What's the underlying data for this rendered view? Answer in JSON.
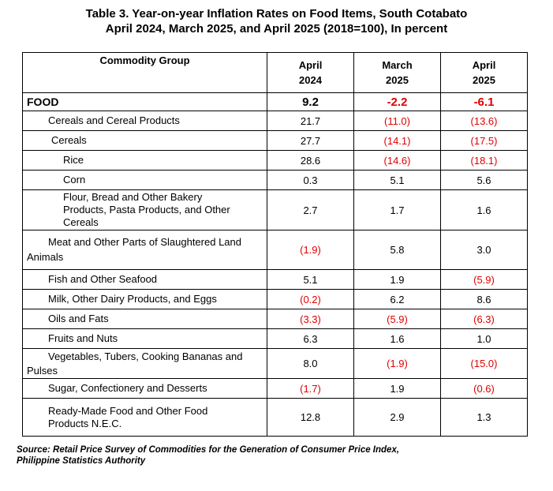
{
  "title": {
    "line1": "Table 3. Year-on-year Inflation Rates on Food Items, South Cotabato",
    "line2": "April 2024, March 2025, and April 2025 (2018=100), In percent"
  },
  "table": {
    "headers": {
      "commodity": "Commodity Group",
      "col1": [
        "April",
        "2024"
      ],
      "col2": [
        "March",
        "2025"
      ],
      "col3": [
        "April",
        "2025"
      ]
    },
    "rows": [
      {
        "label": "FOOD",
        "v1": "9.2",
        "v2": "-2.2",
        "v3": "-6.1"
      },
      {
        "label": "Cereals and Cereal Products",
        "v1": "21.7",
        "v2": "(11.0)",
        "v3": "(13.6)"
      },
      {
        "label": "Cereals",
        "v1": "27.7",
        "v2": "(14.1)",
        "v3": "(17.5)"
      },
      {
        "label": "Rice",
        "v1": "28.6",
        "v2": "(14.6)",
        "v3": "(18.1)"
      },
      {
        "label": "Corn",
        "v1": "0.3",
        "v2": "5.1",
        "v3": "5.6"
      },
      {
        "label_lines": [
          "Flour, Bread and Other Bakery",
          "Products, Pasta Products, and Other",
          "Cereals"
        ],
        "v1": "2.7",
        "v2": "1.7",
        "v3": "1.6"
      },
      {
        "label_lines": [
          "Meat and Other Parts of Slaughtered Land",
          "Animals"
        ],
        "v1": "(1.9)",
        "v2": "5.8",
        "v3": "3.0"
      },
      {
        "label": "Fish and Other Seafood",
        "v1": "5.1",
        "v2": "1.9",
        "v3": "(5.9)"
      },
      {
        "label": "Milk, Other Dairy Products, and Eggs",
        "v1": "(0.2)",
        "v2": "6.2",
        "v3": "8.6"
      },
      {
        "label": "Oils and Fats",
        "v1": "(3.3)",
        "v2": "(5.9)",
        "v3": "(6.3)"
      },
      {
        "label": "Fruits and Nuts",
        "v1": "6.3",
        "v2": "1.6",
        "v3": "1.0"
      },
      {
        "label_lines": [
          "Vegetables, Tubers, Cooking Bananas and",
          "Pulses"
        ],
        "v1": "8.0",
        "v2": "(1.9)",
        "v3": "(15.0)"
      },
      {
        "label": "Sugar, Confectionery and Desserts",
        "v1": "(1.7)",
        "v2": "1.9",
        "v3": "(0.6)"
      },
      {
        "label_lines": [
          "Ready-Made Food and Other Food",
          "Products N.E.C."
        ],
        "v1": "12.8",
        "v2": "2.9",
        "v3": "1.3"
      }
    ]
  },
  "source": {
    "line1": "Source: Retail Price Survey of Commodities for the Generation of Consumer Price Index,",
    "line2": "Philippine Statistics Authority"
  },
  "colors": {
    "negative": "#e00000",
    "text": "#000000"
  }
}
